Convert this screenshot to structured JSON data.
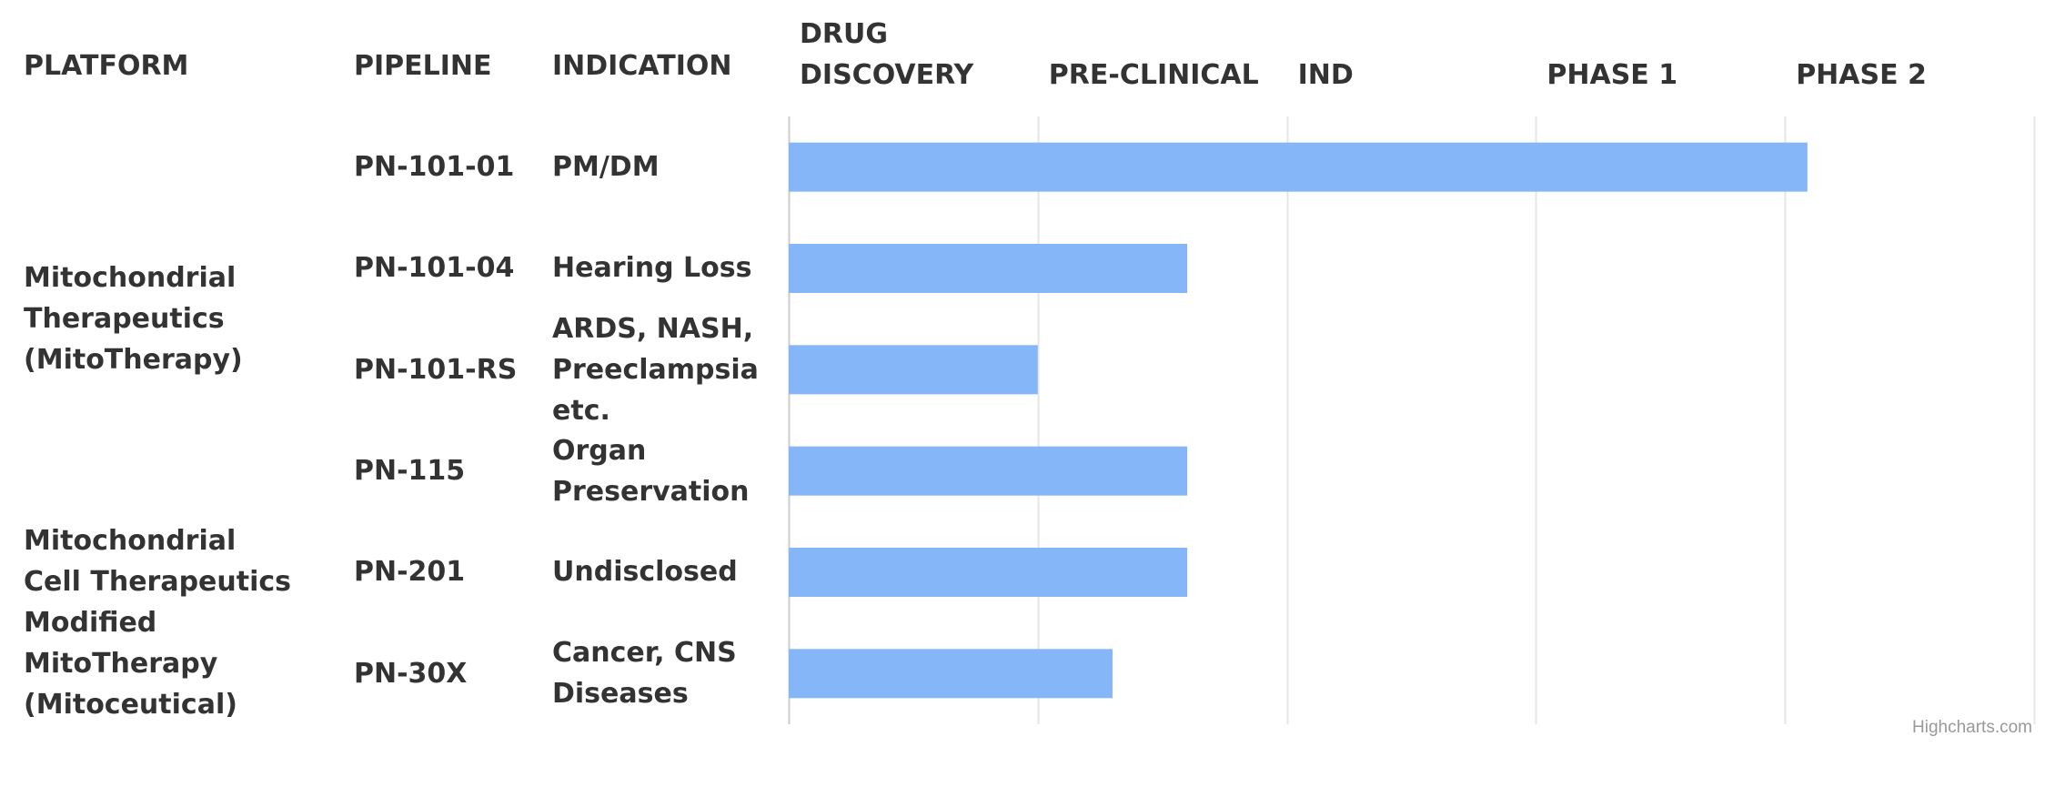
{
  "chart_data": {
    "type": "bar",
    "orientation": "horizontal",
    "column_headers": [
      "PLATFORM",
      "PIPELINE",
      "INDICATION"
    ],
    "stages": [
      "DRUG DISCOVERY",
      "PRE-CLINICAL",
      "IND",
      "PHASE 1",
      "PHASE 2"
    ],
    "xlim": [
      0,
      5
    ],
    "grid": true,
    "platforms": [
      {
        "label": "Mitochondrial Therapeutics (MitoTherapy)"
      },
      {
        "label": "Mitochondrial Cell Therapeutics Modified MitoTherapy (Mitoceutical)"
      }
    ],
    "rows": [
      {
        "pipeline": "PN-101-01",
        "indication": "PM/DM",
        "value": 4.09
      },
      {
        "pipeline": "PN-101-04",
        "indication": "Hearing Loss",
        "value": 1.6
      },
      {
        "pipeline": "PN-101-RS",
        "indication": "ARDS, NASH, Preeclampsia etc.",
        "value": 1.0
      },
      {
        "pipeline": "PN-115",
        "indication": "Organ Preservation",
        "value": 1.6
      },
      {
        "pipeline": "PN-201",
        "indication": "Undisclosed",
        "value": 1.6
      },
      {
        "pipeline": "PN-30X",
        "indication": "Cancer, CNS Diseases",
        "value": 1.3
      }
    ],
    "bar_color": "#85b6f7"
  },
  "credits": "Highcharts.com"
}
